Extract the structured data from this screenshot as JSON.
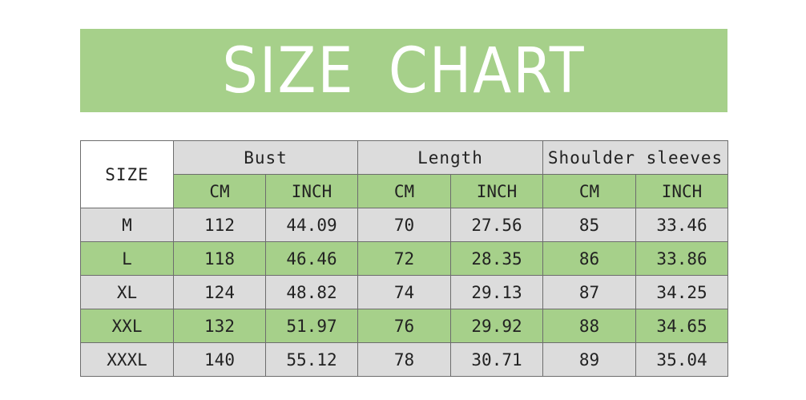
{
  "title": "SIZE CHART",
  "colors": {
    "green": "#a6d08a",
    "gray": "#dcdcdc",
    "white": "#ffffff",
    "border": "#6d6d6d"
  },
  "table": {
    "size_header": "SIZE",
    "groups": [
      "Bust",
      "Length",
      "Shoulder sleeves"
    ],
    "units": [
      "CM",
      "INCH",
      "CM",
      "INCH",
      "CM",
      "INCH"
    ],
    "rows": [
      {
        "size": "M",
        "values": [
          "112",
          "44.09",
          "70",
          "27.56",
          "85",
          "33.46"
        ]
      },
      {
        "size": "L",
        "values": [
          "118",
          "46.46",
          "72",
          "28.35",
          "86",
          "33.86"
        ]
      },
      {
        "size": "XL",
        "values": [
          "124",
          "48.82",
          "74",
          "29.13",
          "87",
          "34.25"
        ]
      },
      {
        "size": "XXL",
        "values": [
          "132",
          "51.97",
          "76",
          "29.92",
          "88",
          "34.65"
        ]
      },
      {
        "size": "XXXL",
        "values": [
          "140",
          "55.12",
          "78",
          "30.71",
          "89",
          "35.04"
        ]
      }
    ]
  },
  "chart_data": {
    "type": "table",
    "title": "SIZE CHART",
    "columns": [
      "SIZE",
      "Bust CM",
      "Bust INCH",
      "Length CM",
      "Length INCH",
      "Shoulder sleeves CM",
      "Shoulder sleeves INCH"
    ],
    "rows": [
      [
        "M",
        112,
        44.09,
        70,
        27.56,
        85,
        33.46
      ],
      [
        "L",
        118,
        46.46,
        72,
        28.35,
        86,
        33.86
      ],
      [
        "XL",
        124,
        48.82,
        74,
        29.13,
        87,
        34.25
      ],
      [
        "XXL",
        132,
        51.97,
        76,
        29.92,
        88,
        34.65
      ],
      [
        "XXXL",
        140,
        55.12,
        78,
        30.71,
        89,
        35.04
      ]
    ]
  }
}
